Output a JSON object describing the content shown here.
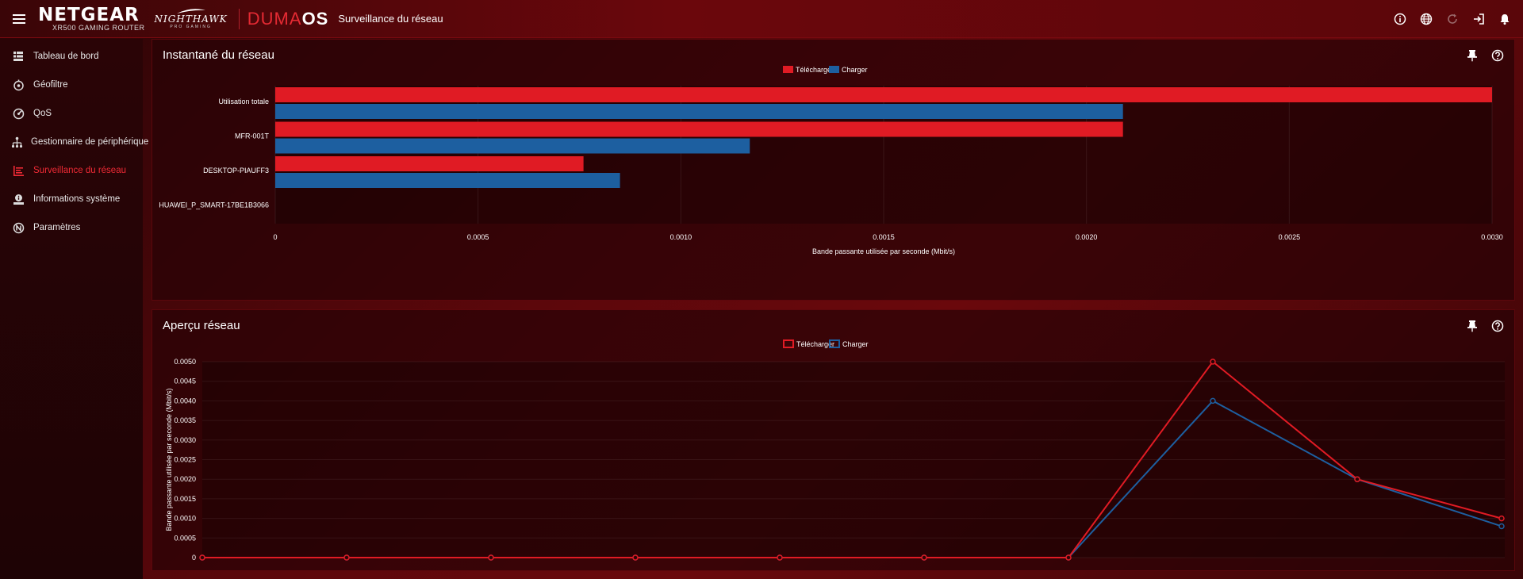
{
  "header": {
    "brand": "NETGEAR",
    "model": "XR500 GAMING ROUTER",
    "nighthawk": "NIGHTHAWK",
    "pro_gaming": "PRO GAMING",
    "duma_prefix": "DUMA",
    "duma_suffix": "OS",
    "page_title": "Surveillance du réseau",
    "icons": [
      "info-icon",
      "globe-icon",
      "refresh-icon",
      "logout-icon",
      "bell-icon"
    ]
  },
  "sidebar": {
    "items": [
      {
        "label": "Tableau de bord",
        "icon": "dashboard-icon"
      },
      {
        "label": "Géofiltre",
        "icon": "geofilter-icon"
      },
      {
        "label": "QoS",
        "icon": "qos-icon"
      },
      {
        "label": "Gestionnaire de périphérique",
        "icon": "device-manager-icon"
      },
      {
        "label": "Surveillance du réseau",
        "icon": "network-monitor-icon",
        "active": true
      },
      {
        "label": "Informations système",
        "icon": "system-info-icon"
      },
      {
        "label": "Paramètres",
        "icon": "settings-icon"
      }
    ],
    "active_color": "#ef2a35"
  },
  "snapshot": {
    "title": "Instantané du réseau"
  },
  "overview": {
    "title": "Aperçu réseau"
  },
  "colors": {
    "download": "#e01b24",
    "upload": "#1d5fa0"
  },
  "chart_data": [
    {
      "type": "bar",
      "orientation": "horizontal",
      "categories": [
        "Utilisation totale",
        "MFR-001T",
        "DESKTOP-PIAUFF3",
        "HUAWEI_P_SMART-17BE1B3066"
      ],
      "series": [
        {
          "name": "Télécharger",
          "values": [
            0.003,
            0.00209,
            0.00076,
            0
          ]
        },
        {
          "name": "Charger",
          "values": [
            0.00209,
            0.00117,
            0.00085,
            0
          ]
        }
      ],
      "xlabel": "Bande passante utilisée par seconde (Mbit/s)",
      "xlim": [
        0,
        0.003
      ],
      "xticks": [
        "0",
        "0.0005",
        "0.0010",
        "0.0015",
        "0.0020",
        "0.0025",
        "0.0030"
      ],
      "legend": "top-center"
    },
    {
      "type": "line",
      "x": [
        0,
        1,
        2,
        3,
        4,
        5,
        6,
        7,
        8,
        9
      ],
      "series": [
        {
          "name": "Télécharger",
          "values": [
            0,
            0,
            0,
            0,
            0,
            0,
            0,
            0.005,
            0.002,
            0.001
          ]
        },
        {
          "name": "Charger",
          "values": [
            0,
            0,
            0,
            0,
            0,
            0,
            0,
            0.004,
            0.002,
            0.0008
          ]
        }
      ],
      "ylabel": "Bande passante utilisée par seconde (Mbit/s)",
      "ylim": [
        0,
        0.005
      ],
      "yticks": [
        "0",
        "0.0005",
        "0.0010",
        "0.0015",
        "0.0020",
        "0.0025",
        "0.0030",
        "0.0035",
        "0.0040",
        "0.0045",
        "0.0050"
      ],
      "legend": "top-center"
    }
  ]
}
